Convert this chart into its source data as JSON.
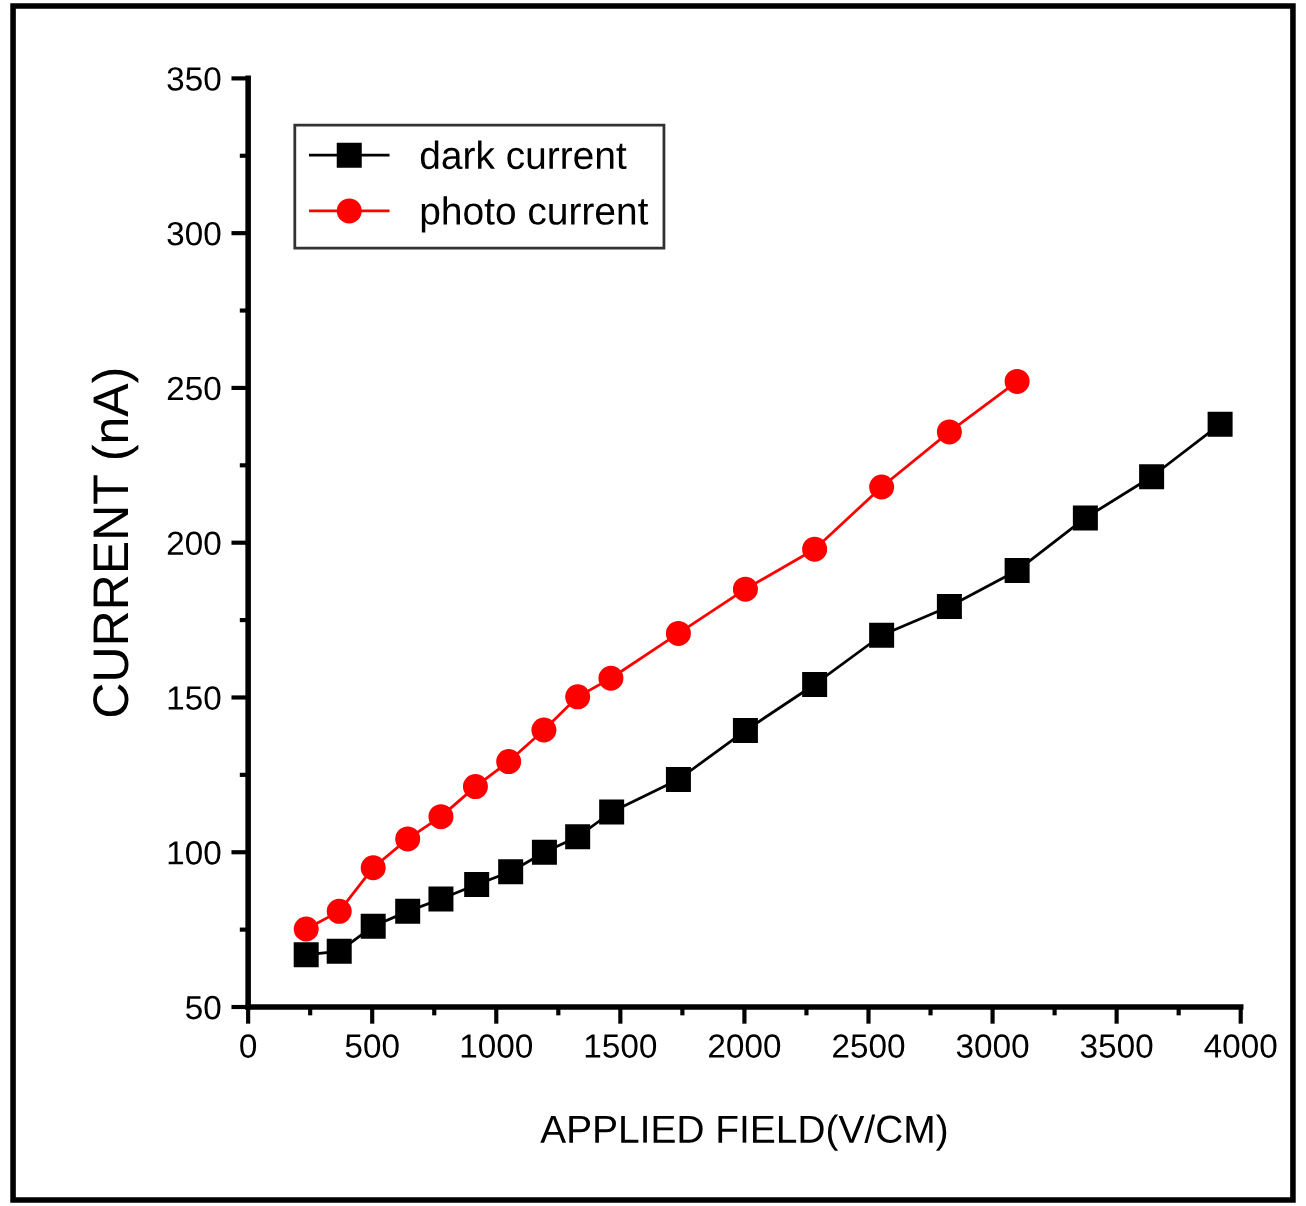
{
  "chart_data": {
    "type": "line",
    "xlabel": "APPLIED FIELD(V/CM)",
    "ylabel": "CURRENT (nA)",
    "xlim": [
      0,
      4000
    ],
    "xticks": [
      0,
      500,
      1000,
      1500,
      2000,
      2500,
      3000,
      3500,
      4000
    ],
    "ylim": [
      50,
      350
    ],
    "yticks": [
      50,
      100,
      150,
      200,
      250,
      300,
      350
    ],
    "grid": false,
    "legend": "top left",
    "series": [
      {
        "name": "dark current",
        "color": "#000000",
        "marker": "square",
        "x": [
          234,
          367,
          504,
          643,
          777,
          921,
          1058,
          1194,
          1328,
          1465,
          1734,
          2004,
          2283,
          2553,
          2826,
          3099,
          3374,
          3641,
          3917
        ],
        "values": [
          66.9,
          68.0,
          76.1,
          80.9,
          84.9,
          89.6,
          93.7,
          100,
          105.0,
          113,
          123.5,
          139.3,
          154.2,
          170.1,
          179.4,
          191.0,
          208.0,
          221.3,
          238.3
        ]
      },
      {
        "name": "photo current",
        "color": "#ff0000",
        "marker": "circle",
        "x": [
          234,
          367,
          504,
          643,
          777,
          916,
          1050,
          1192,
          1328,
          1462,
          1734,
          2004,
          2283,
          2553,
          2826,
          3099
        ],
        "values": [
          75.2,
          80.9,
          95.0,
          104.3,
          111.5,
          121.2,
          129.3,
          139.5,
          150.2,
          156.2,
          170.7,
          185.0,
          197.9,
          218.0,
          235.8,
          252.1
        ]
      }
    ]
  }
}
